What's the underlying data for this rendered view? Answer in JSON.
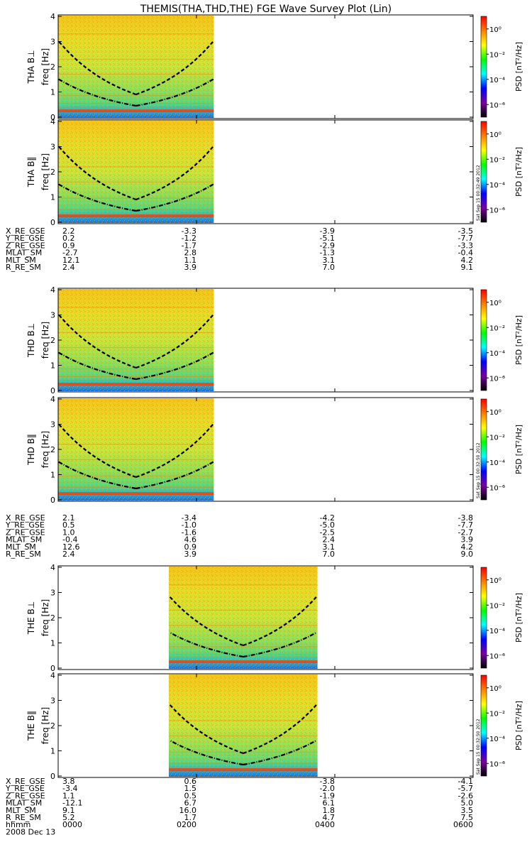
{
  "title": "THEMIS(THA,THD,THE) FGE Wave Survey Plot (Lin)",
  "chart_data": {
    "type": "heatmap",
    "x_ticks": [
      "0000",
      "0200",
      "0400",
      "0600"
    ],
    "x_tick_hours": [
      0,
      2,
      4,
      6
    ],
    "xlim_hours": [
      0,
      6
    ],
    "date": "2008 Dec 13",
    "time_row_label": "hhmm",
    "ylim_hz": [
      0,
      4
    ],
    "y_ticks": [
      "0",
      "1",
      "2",
      "3",
      "4"
    ],
    "y_axis_label": "freq [Hz]",
    "colorbar": {
      "label": "PSD [nT²/Hz]",
      "ticks": [
        "10⁰",
        "10⁻²",
        "10⁻⁴",
        "10⁻⁶"
      ],
      "log_range": [
        -7,
        1
      ],
      "tick_values_log": [
        0,
        -2,
        -4,
        -6
      ],
      "colors": [
        "#000000",
        "#7a00a0",
        "#0000ff",
        "#00ffff",
        "#00ff00",
        "#ffff00",
        "#ff8000",
        "#ff0000"
      ]
    },
    "stamps": [
      "Sat Sep 15 00:32:49 2012",
      "Sat Sep 15 00:32:50 2012"
    ],
    "panels": [
      {
        "label": "THA B⊥",
        "probe": "THA",
        "component": "perp",
        "data_hours": [
          0,
          2.25
        ],
        "stamp": null
      },
      {
        "label": "THA B‖",
        "probe": "THA",
        "component": "par",
        "data_hours": [
          0,
          2.25
        ],
        "stamp": 0
      },
      {
        "label": "THD B⊥",
        "probe": "THD",
        "component": "perp",
        "data_hours": [
          0,
          2.25
        ],
        "stamp": null
      },
      {
        "label": "THD B‖",
        "probe": "THD",
        "component": "par",
        "data_hours": [
          0,
          2.25
        ],
        "stamp": 1
      },
      {
        "label": "THE B⊥",
        "probe": "THE",
        "component": "perp",
        "data_hours": [
          1.6,
          3.75
        ],
        "stamp": null
      },
      {
        "label": "THE B‖",
        "probe": "THE",
        "component": "par",
        "data_hours": [
          1.6,
          3.75
        ],
        "stamp": 1
      }
    ],
    "ephemeris_labels": [
      "X_RE_GSE",
      "Y_RE_GSE",
      "Z_RE_GSE",
      "MLAT_SM",
      "MLT_SM",
      "R_RE_SM"
    ],
    "ephemeris": [
      {
        "probe": "THA",
        "rows": [
          [
            "2.2",
            "-3.3",
            "-3.9",
            "-3.5"
          ],
          [
            "0.2",
            "-1.2",
            "-5.1",
            "-7.7"
          ],
          [
            "0.9",
            "-1.7",
            "-2.9",
            "-3.3"
          ],
          [
            "-2.7",
            "2.8",
            "-1.3",
            "-0.4"
          ],
          [
            "12.1",
            "1.1",
            "3.1",
            "4.2"
          ],
          [
            "2.4",
            "3.9",
            "7.0",
            "9.1"
          ]
        ]
      },
      {
        "probe": "THD",
        "rows": [
          [
            "2.1",
            "-3.4",
            "-4.2",
            "-3.8"
          ],
          [
            "0.5",
            "-1.0",
            "-5.0",
            "-7.7"
          ],
          [
            "1.0",
            "-1.6",
            "-2.5",
            "-2.7"
          ],
          [
            "-0.4",
            "4.6",
            "2.4",
            "3.9"
          ],
          [
            "12.6",
            "0.9",
            "3.1",
            "4.2"
          ],
          [
            "2.4",
            "3.9",
            "7.0",
            "9.0"
          ]
        ]
      },
      {
        "probe": "THE",
        "rows": [
          [
            "3.8",
            "0.6",
            "-3.8",
            "-4.1"
          ],
          [
            "-3.4",
            "1.5",
            "-2.0",
            "-5.7"
          ],
          [
            "1.1",
            "0.5",
            "-1.9",
            "-2.6"
          ],
          [
            "-12.1",
            "6.7",
            "6.1",
            "5.0"
          ],
          [
            "9.1",
            "16.0",
            "1.8",
            "3.5"
          ],
          [
            "5.2",
            "1.7",
            "4.7",
            "7.5"
          ]
        ]
      }
    ]
  }
}
